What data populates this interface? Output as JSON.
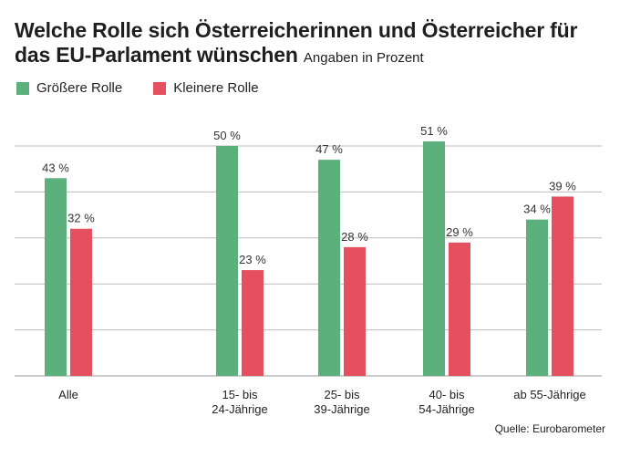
{
  "title": "Welche Rolle sich Österreicherinnen und Österreicher für das EU-Parlament wünschen",
  "subtitle": "Angaben in Prozent",
  "source": "Quelle: Eurobarometer",
  "colors": {
    "green": "#5cb07c",
    "red": "#e4505f",
    "grid": "#bbbbbb"
  },
  "chart_data": {
    "type": "bar",
    "categories": [
      [
        "Alle"
      ],
      [
        "15- bis",
        "24-Jährige"
      ],
      [
        "25- bis",
        "39-Jährige"
      ],
      [
        "40- bis",
        "54-Jährige"
      ],
      [
        "ab 55-Jährige"
      ]
    ],
    "series": [
      {
        "name": "Größere Rolle",
        "color": "#5cb07c",
        "values": [
          43,
          50,
          47,
          51,
          34
        ],
        "labels": [
          "43 %",
          "50 %",
          "47 %",
          "51 %",
          "34 %"
        ]
      },
      {
        "name": "Kleinere Rolle",
        "color": "#e4505f",
        "values": [
          32,
          23,
          28,
          29,
          39
        ],
        "labels": [
          "32 %",
          "23 %",
          "28 %",
          "29 %",
          "39 %"
        ]
      }
    ],
    "ylim": [
      0,
      50
    ],
    "yticks": [
      0,
      10,
      20,
      30,
      40,
      50
    ],
    "grid": true,
    "legend": "top-left"
  }
}
